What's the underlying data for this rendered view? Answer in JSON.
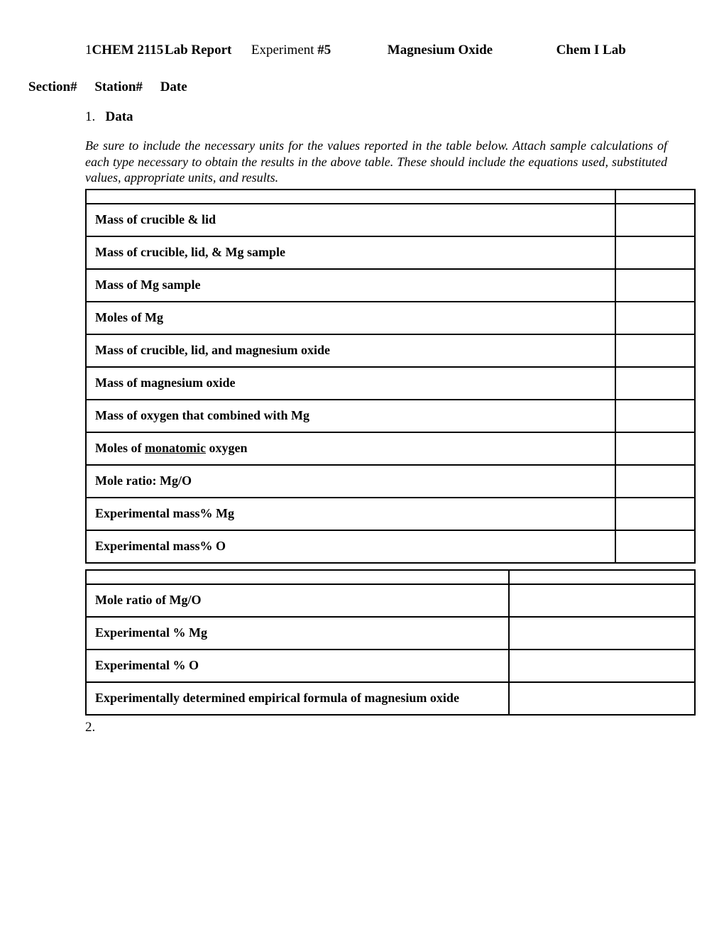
{
  "header": {
    "page_prefix": "1",
    "course": "CHEM 2115",
    "report_label": "Lab Report",
    "experiment_label": "Experiment",
    "experiment_num": "#5",
    "title": "Magnesium Oxide",
    "course_full": "Chem I Lab"
  },
  "subheader": {
    "section": "Section#",
    "station": "Station#",
    "date": "Date"
  },
  "section1": {
    "num": "1.",
    "label": "Data",
    "instructions": "Be sure to include the necessary units for the values reported in the table below.  Attach sample calculations of each type necessary to obtain the results in the above table.  These should include the equations used, substituted values, appropriate units, and results."
  },
  "table1": {
    "rows": [
      "Mass of crucible & lid",
      "Mass of crucible, lid, & Mg sample",
      "Mass of Mg sample",
      "Moles of Mg",
      "Mass of crucible, lid, and magnesium oxide",
      "Mass of magnesium oxide",
      "Mass of oxygen that combined with Mg",
      "Moles of |monatomic| oxygen",
      "Mole ratio: Mg/O",
      "Experimental mass% Mg",
      "Experimental mass% O"
    ]
  },
  "table2": {
    "rows": [
      "Mole ratio of Mg/O",
      "Experimental % Mg",
      "Experimental % O",
      "Experimentally determined empirical formula of magnesium oxide"
    ]
  },
  "section2": {
    "num": "2."
  }
}
